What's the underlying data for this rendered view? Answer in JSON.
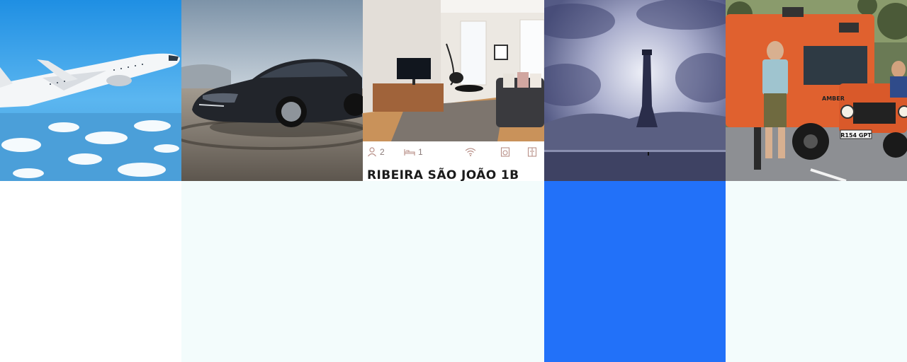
{
  "tiles": [
    {
      "subject": "airplane-photo"
    },
    {
      "subject": "car-photo"
    },
    {
      "subject": "apartment-listing",
      "listing": {
        "guests": "2",
        "beds": "1",
        "amenities": [
          "wifi-icon",
          "washer-icon",
          "fridge-icon"
        ],
        "title": "RIBEIRA SÃO JOÃO 1B"
      }
    },
    {
      "subject": "storm-tower-photo"
    },
    {
      "subject": "expedition-truck-photo",
      "plate_text": "R154 GPT",
      "vehicle_name": "AMBER"
    }
  ],
  "bottom_panels": [
    {
      "color": "#ffffff"
    },
    {
      "color": "#f3fcfc"
    },
    {
      "color": "#f3fcfc"
    },
    {
      "color": "#2271f9"
    },
    {
      "color": "#f3fcfc"
    }
  ]
}
